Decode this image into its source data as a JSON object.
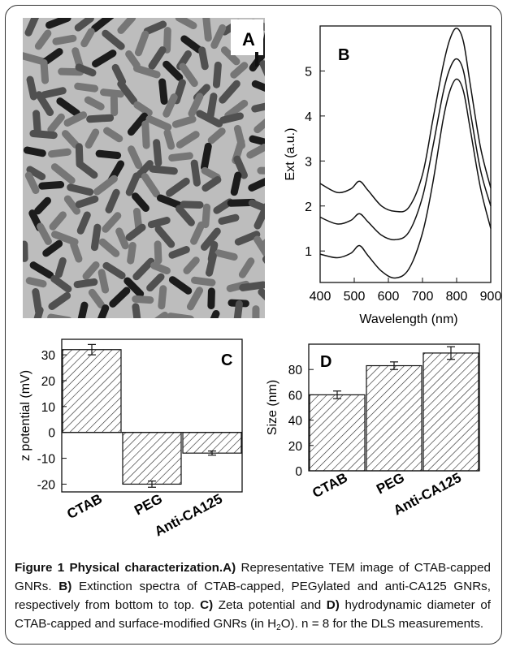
{
  "panels": {
    "a": {
      "label": "A"
    },
    "b": {
      "label": "B",
      "chart_data": {
        "type": "line",
        "xlabel": "Wavelength (nm)",
        "ylabel": "Ext (a.u.)",
        "xlim": [
          400,
          900
        ],
        "ylim": [
          0.3,
          6.0
        ],
        "xticks": [
          "400",
          "500",
          "600",
          "700",
          "800",
          "900"
        ],
        "yticks": [
          "1",
          "2",
          "3",
          "4",
          "5"
        ],
        "x": [
          400,
          450,
          490,
          515,
          540,
          580,
          620,
          660,
          700,
          730,
          760,
          780,
          800,
          820,
          840,
          870,
          900
        ],
        "series": [
          {
            "values": [
              0.93,
              0.85,
              0.95,
              1.12,
              0.9,
              0.55,
              0.4,
              0.6,
              1.4,
              2.5,
              3.9,
              4.55,
              4.82,
              4.55,
              3.7,
              2.4,
              1.5
            ]
          },
          {
            "values": [
              1.75,
              1.6,
              1.68,
              1.83,
              1.65,
              1.35,
              1.25,
              1.42,
              2.2,
              3.3,
              4.5,
              5.05,
              5.27,
              5.0,
              4.1,
              2.8,
              2.0
            ]
          },
          {
            "values": [
              2.5,
              2.3,
              2.38,
              2.55,
              2.35,
              2.0,
              1.88,
              1.97,
              2.7,
              3.9,
              5.1,
              5.7,
              5.95,
              5.65,
              4.7,
              3.3,
              2.4
            ]
          }
        ]
      }
    },
    "c": {
      "label": "C",
      "chart_data": {
        "type": "bar",
        "categories": [
          "CTAB",
          "PEG",
          "Anti-CA125"
        ],
        "values": [
          32,
          -20,
          -8
        ],
        "errors": [
          2,
          1.2,
          0.8
        ],
        "ylabel": "z potential (mV)",
        "ylim": [
          -23,
          36
        ],
        "yticks": [
          "30",
          "20",
          "10",
          "0",
          "-10",
          "-20"
        ]
      }
    },
    "d": {
      "label": "D",
      "chart_data": {
        "type": "bar",
        "categories": [
          "CTAB",
          "PEG",
          "Anti-CA125"
        ],
        "values": [
          60,
          83,
          93
        ],
        "errors": [
          3,
          3,
          5
        ],
        "ylabel": "Size (nm)",
        "ylim": [
          0,
          100
        ],
        "yticks": [
          "80",
          "60",
          "40",
          "20",
          "0"
        ]
      }
    }
  },
  "caption": {
    "fig_label": "Figure 1 Physical characterization.",
    "a_label": "A)",
    "a_text": " Representative TEM image of CTAB-capped GNRs. ",
    "b_label": "B)",
    "b_text": " Extinction spectra of CTAB-capped, PEGylated and anti-CA125 GNRs, respectively from bottom to top. ",
    "c_label": "C)",
    "c_text": " Zeta potential and ",
    "d_label": "D)",
    "d_text": " hydrodynamic diameter of CTAB-capped and surface-modified GNRs (in H",
    "sub_2": "2",
    "end_text": "O). n = 8 for the DLS measurements."
  },
  "colors": {
    "ink": "#111111",
    "tem_bg": "#b8b8b8",
    "rod_dark": "#2a2a2a",
    "rod_mid": "#555555"
  }
}
